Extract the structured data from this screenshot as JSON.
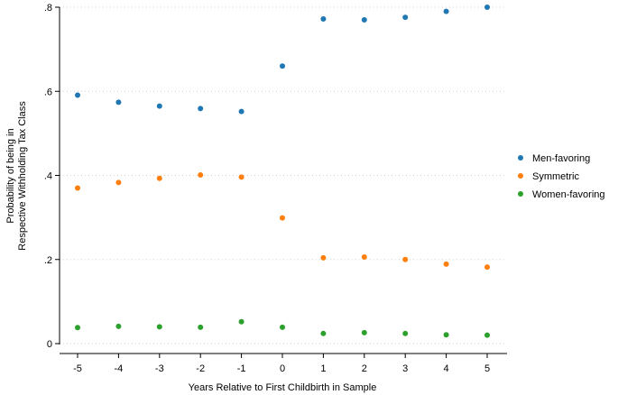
{
  "chart_data": {
    "type": "scatter",
    "title": "",
    "xlabel": "Years Relative to First Childbirth in Sample",
    "ylabel_lines": [
      "Probability of being in",
      "Respective Withholding Tax Class"
    ],
    "x": [
      -5,
      -4,
      -3,
      -2,
      -1,
      0,
      1,
      2,
      3,
      4,
      5
    ],
    "x_tick_labels": [
      "-5",
      "-4",
      "-3",
      "-2",
      "-1",
      "0",
      "1",
      "2",
      "3",
      "4",
      "5"
    ],
    "ylim": [
      0,
      0.8
    ],
    "y_ticks": [
      0,
      0.2,
      0.4,
      0.6,
      0.8
    ],
    "y_tick_labels": [
      "0",
      ".2",
      ".4",
      ".6",
      ".8"
    ],
    "grid": "horizontal dotted",
    "legend_position": "right",
    "series": [
      {
        "name": "Men-favoring",
        "color": "#1f77b4",
        "values": [
          0.591,
          0.574,
          0.565,
          0.559,
          0.552,
          0.66,
          0.772,
          0.77,
          0.776,
          0.79,
          0.8
        ]
      },
      {
        "name": "Symmetric",
        "color": "#ff7f0e",
        "values": [
          0.37,
          0.383,
          0.393,
          0.401,
          0.396,
          0.299,
          0.204,
          0.206,
          0.2,
          0.189,
          0.182
        ]
      },
      {
        "name": "Women-favoring",
        "color": "#2ca02c",
        "values": [
          0.038,
          0.041,
          0.04,
          0.039,
          0.052,
          0.039,
          0.024,
          0.026,
          0.024,
          0.021,
          0.02
        ]
      }
    ]
  }
}
